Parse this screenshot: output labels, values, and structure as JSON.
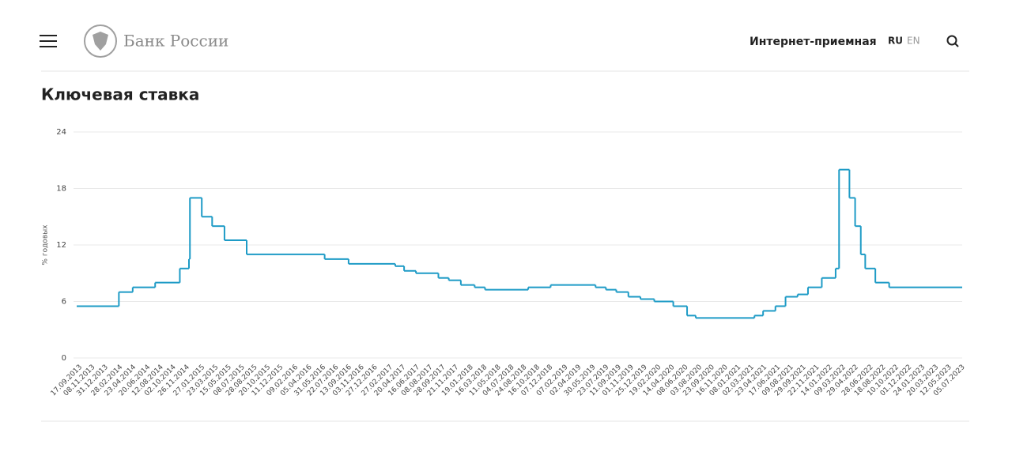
{
  "header": {
    "logo_text": "Банк России",
    "nav_link": "Интернет-приемная",
    "languages": [
      "RU",
      "EN"
    ]
  },
  "chart_data": {
    "type": "step-line",
    "title": "Ключевая ставка",
    "y_label": "% годовых",
    "color": "#1e9bc6",
    "grid": true,
    "x": [
      "13.09.2013",
      "03.03.2014",
      "28.04.2014",
      "28.07.2014",
      "05.11.2014",
      "12.12.2014",
      "16.12.2014",
      "02.02.2015",
      "16.03.2015",
      "05.05.2015",
      "03.08.2015",
      "14.06.2016",
      "19.09.2016",
      "27.03.2017",
      "02.05.2017",
      "19.06.2017",
      "18.09.2017",
      "30.10.2017",
      "18.12.2017",
      "12.02.2018",
      "26.03.2018",
      "17.09.2018",
      "17.12.2018",
      "17.06.2019",
      "29.07.2019",
      "09.09.2019",
      "28.10.2019",
      "16.12.2019",
      "10.02.2020",
      "27.04.2020",
      "22.06.2020",
      "27.07.2020",
      "22.03.2021",
      "26.04.2021",
      "15.06.2021",
      "26.07.2021",
      "13.09.2021",
      "25.10.2021",
      "20.12.2021",
      "14.02.2022",
      "28.02.2022",
      "11.04.2022",
      "04.05.2022",
      "27.05.2022",
      "14.06.2022",
      "25.07.2022",
      "19.09.2022"
    ],
    "values": [
      5.5,
      7,
      7.5,
      8,
      9.5,
      10.5,
      17,
      15,
      14,
      12.5,
      11,
      10.5,
      10,
      9.75,
      9.25,
      9,
      8.5,
      8.25,
      7.75,
      7.5,
      7.25,
      7.5,
      7.75,
      7.5,
      7.25,
      7,
      6.5,
      6.25,
      6,
      5.5,
      4.5,
      4.25,
      4.5,
      5,
      5.5,
      6.5,
      6.75,
      7.5,
      8.5,
      9.5,
      20,
      17,
      14,
      11,
      9.5,
      8,
      7.5
    ],
    "xlim": [
      "13.09.2013",
      "12.07.2023"
    ],
    "xticks": [
      "17.09.2013",
      "08.11.2013",
      "31.12.2013",
      "28.02.2014",
      "23.04.2014",
      "20.06.2014",
      "12.08.2014",
      "02.10.2014",
      "26.11.2014",
      "27.01.2015",
      "23.03.2015",
      "15.05.2015",
      "08.07.2015",
      "28.08.2015",
      "20.10.2015",
      "11.12.2015",
      "09.02.2016",
      "05.04.2016",
      "31.05.2016",
      "22.07.2016",
      "13.09.2016",
      "03.11.2016",
      "27.12.2016",
      "27.02.2017",
      "20.04.2017",
      "16.06.2017",
      "08.08.2017",
      "28.09.2017",
      "21.11.2017",
      "19.01.2018",
      "16.03.2018",
      "11.05.2018",
      "04.07.2018",
      "24.08.2018",
      "16.10.2018",
      "07.12.2018",
      "07.02.2019",
      "02.04.2019",
      "30.05.2019",
      "23.07.2019",
      "11.09.2019",
      "01.11.2019",
      "25.12.2019",
      "19.02.2020",
      "14.04.2020",
      "08.06.2020",
      "03.08.2020",
      "23.09.2020",
      "16.11.2020",
      "08.01.2021",
      "02.03.2021",
      "23.04.2021",
      "17.06.2021",
      "09.08.2021",
      "29.09.2021",
      "22.11.2021",
      "14.01.2022",
      "09.03.2022",
      "29.04.2022",
      "28.06.2022",
      "18.08.2022",
      "10.10.2022",
      "01.12.2022",
      "24.01.2023",
      "20.03.2023",
      "12.05.2023",
      "05.07.2023"
    ],
    "ylim": [
      0,
      24
    ],
    "yticks": [
      0,
      6,
      12,
      18,
      24
    ]
  }
}
